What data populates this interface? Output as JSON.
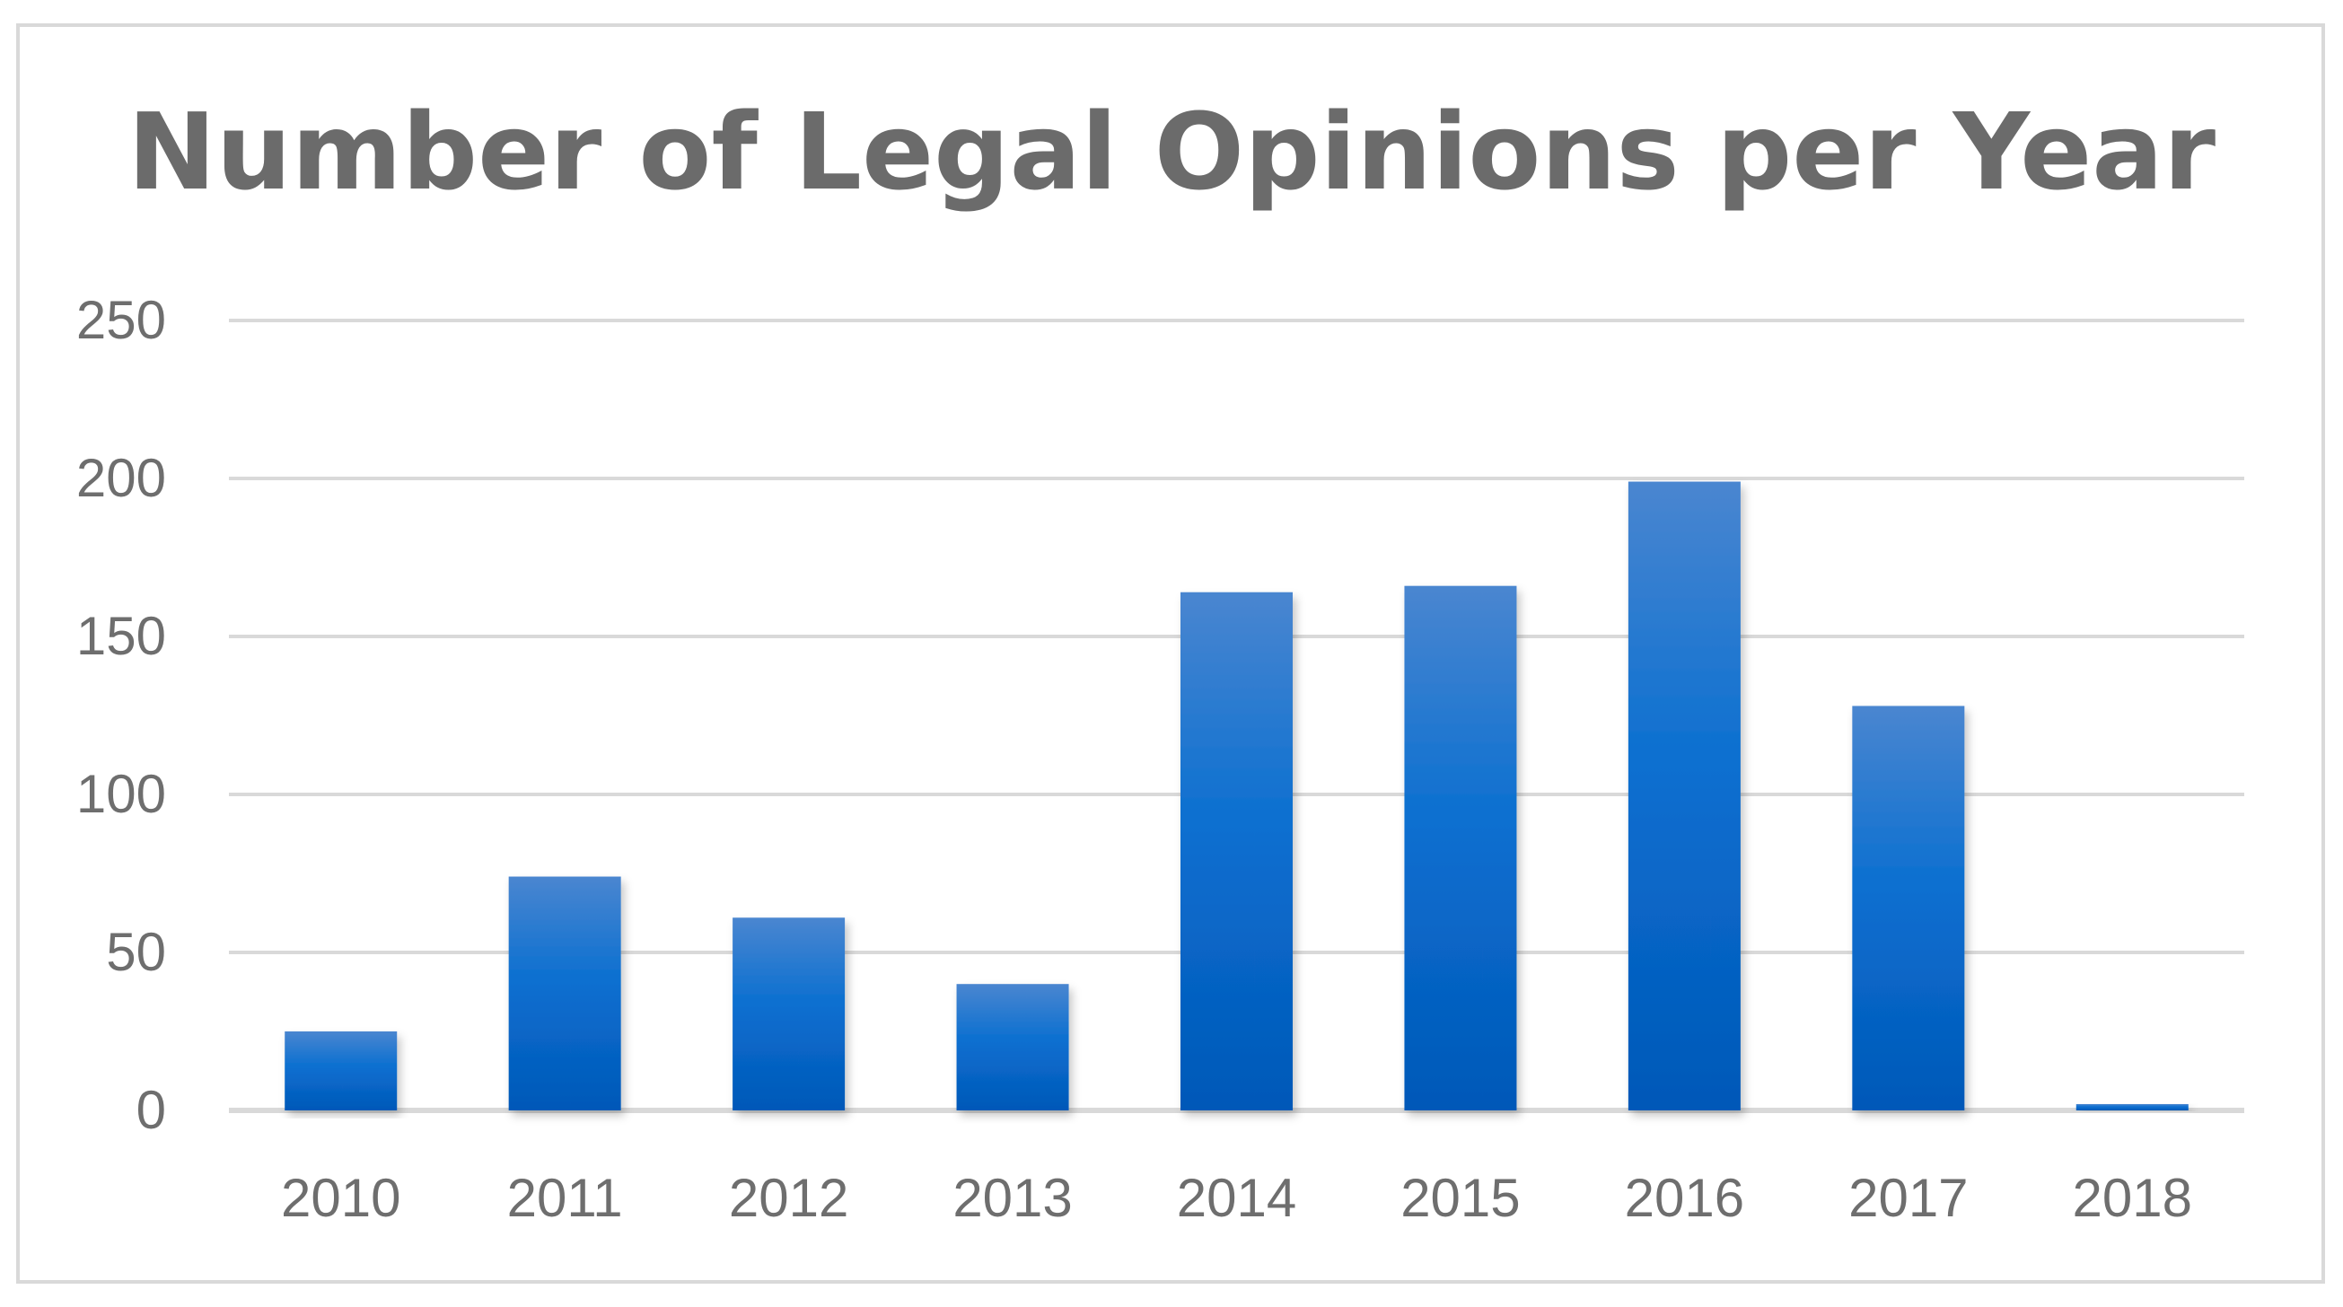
{
  "chart_data": {
    "type": "bar",
    "title": "Number of Legal Opinions per Year",
    "xlabel": "",
    "ylabel": "",
    "categories": [
      "2010",
      "2011",
      "2012",
      "2013",
      "2014",
      "2015",
      "2016",
      "2017",
      "2018"
    ],
    "values": [
      25,
      74,
      61,
      40,
      164,
      166,
      199,
      128,
      2
    ],
    "ylim": [
      0,
      250
    ],
    "yticks": [
      "0",
      "50",
      "100",
      "150",
      "200",
      "250"
    ],
    "grid": true,
    "legend": "none",
    "colors": {
      "bar_top": "#4a86d0",
      "bar_mid": "#0a6fd0",
      "bar_bottom": "#0358b8",
      "grid": "#d9d9d9",
      "text": "#6e6e6e"
    }
  }
}
